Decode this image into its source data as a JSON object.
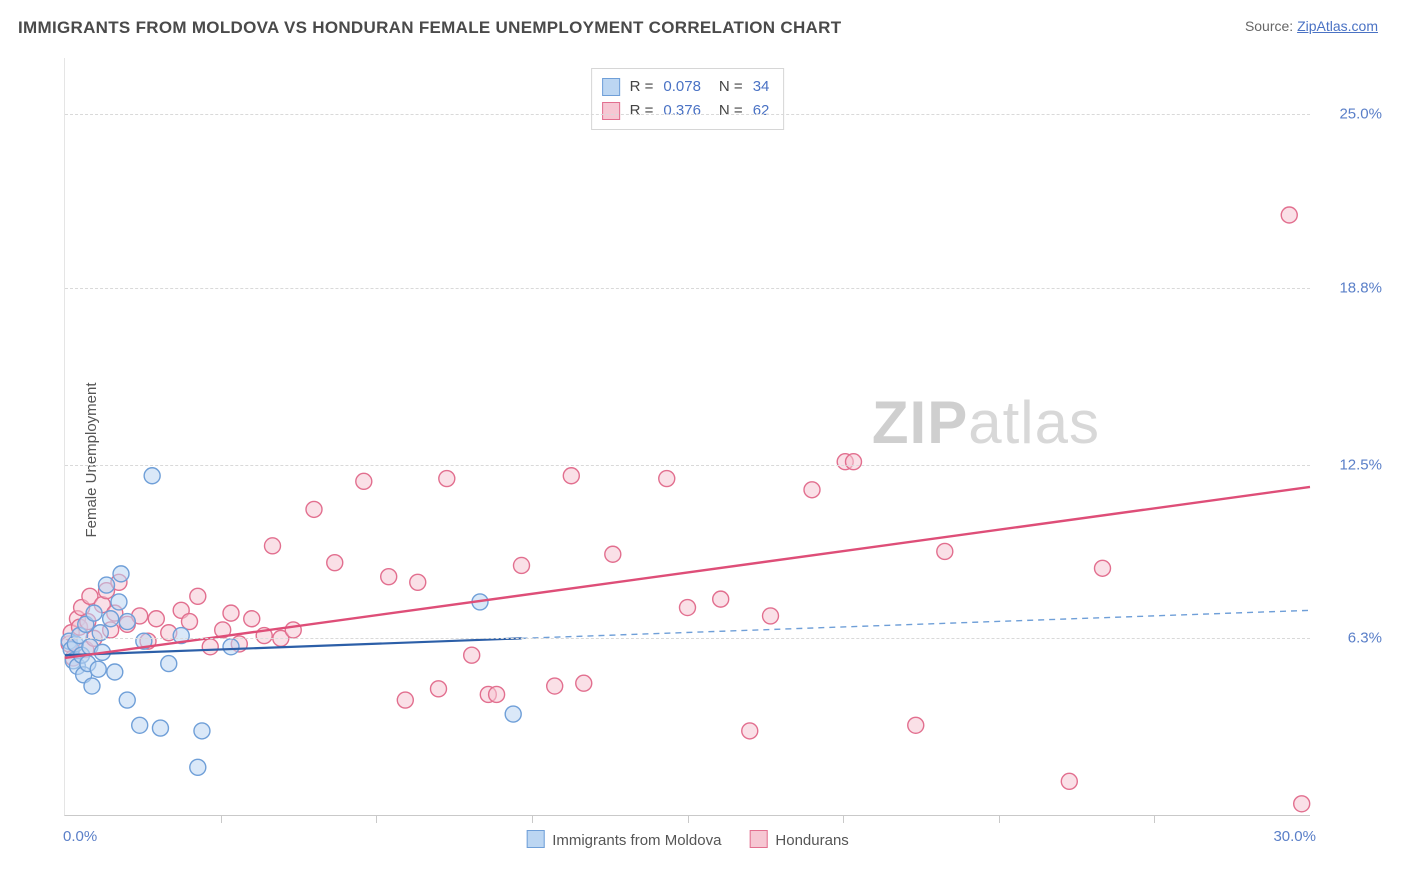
{
  "title": "IMMIGRANTS FROM MOLDOVA VS HONDURAN FEMALE UNEMPLOYMENT CORRELATION CHART",
  "source_label": "Source:",
  "source_name": "ZipAtlas.com",
  "y_axis_label": "Female Unemployment",
  "watermark_bold": "ZIP",
  "watermark_rest": "atlas",
  "chart": {
    "type": "scatter",
    "xlim": [
      0,
      30
    ],
    "ylim": [
      0,
      27
    ],
    "x_min_label": "0.0%",
    "x_max_label": "30.0%",
    "y_ticks": [
      6.3,
      12.5,
      18.8,
      25.0
    ],
    "y_tick_labels": [
      "6.3%",
      "12.5%",
      "18.8%",
      "25.0%"
    ],
    "x_ticks": [
      3.75,
      7.5,
      11.25,
      15,
      18.75,
      22.5,
      26.25
    ],
    "background_color": "#ffffff",
    "grid_color": "#d9d9d9",
    "axis_color": "#c9c9c9",
    "tick_label_color": "#5a7fc8",
    "marker_radius": 8,
    "marker_stroke_width": 1.4,
    "series": {
      "moldova": {
        "label": "Immigrants from Moldova",
        "fill_color": "#bcd6f2",
        "stroke_color": "#6f9fd8",
        "fill_opacity": 0.55,
        "R": "0.078",
        "N": "34",
        "trend": {
          "solid": {
            "x1": 0,
            "y1": 5.7,
            "x2": 11,
            "y2": 6.3,
            "color": "#2c5fa8",
            "width": 2.2
          },
          "dashed": {
            "x1": 11,
            "y1": 6.3,
            "x2": 30,
            "y2": 7.3,
            "color": "#6f9fd8",
            "width": 1.4,
            "dash": "6,5"
          }
        },
        "points": [
          [
            0.1,
            6.2
          ],
          [
            0.15,
            5.9
          ],
          [
            0.2,
            5.5
          ],
          [
            0.25,
            6.1
          ],
          [
            0.3,
            5.3
          ],
          [
            0.35,
            6.4
          ],
          [
            0.4,
            5.7
          ],
          [
            0.45,
            5.0
          ],
          [
            0.5,
            6.8
          ],
          [
            0.55,
            5.4
          ],
          [
            0.6,
            6.0
          ],
          [
            0.65,
            4.6
          ],
          [
            0.7,
            7.2
          ],
          [
            0.8,
            5.2
          ],
          [
            0.85,
            6.5
          ],
          [
            0.9,
            5.8
          ],
          [
            1.0,
            8.2
          ],
          [
            1.1,
            7.0
          ],
          [
            1.2,
            5.1
          ],
          [
            1.3,
            7.6
          ],
          [
            1.35,
            8.6
          ],
          [
            1.5,
            4.1
          ],
          [
            1.5,
            6.9
          ],
          [
            1.8,
            3.2
          ],
          [
            1.9,
            6.2
          ],
          [
            2.1,
            12.1
          ],
          [
            2.3,
            3.1
          ],
          [
            2.5,
            5.4
          ],
          [
            2.8,
            6.4
          ],
          [
            3.2,
            1.7
          ],
          [
            3.3,
            3.0
          ],
          [
            4.0,
            6.0
          ],
          [
            10.0,
            7.6
          ],
          [
            10.8,
            3.6
          ]
        ]
      },
      "hondurans": {
        "label": "Hondurans",
        "fill_color": "#f6c7d3",
        "stroke_color": "#e26f8f",
        "fill_opacity": 0.55,
        "R": "0.376",
        "N": "62",
        "trend": {
          "solid": {
            "x1": 0,
            "y1": 5.6,
            "x2": 30,
            "y2": 11.7,
            "color": "#de4e78",
            "width": 2.4
          }
        },
        "points": [
          [
            0.1,
            6.1
          ],
          [
            0.15,
            6.5
          ],
          [
            0.2,
            5.6
          ],
          [
            0.3,
            7.0
          ],
          [
            0.35,
            6.7
          ],
          [
            0.4,
            7.4
          ],
          [
            0.5,
            5.9
          ],
          [
            0.55,
            6.9
          ],
          [
            0.6,
            7.8
          ],
          [
            0.7,
            6.3
          ],
          [
            0.9,
            7.5
          ],
          [
            1.0,
            8.0
          ],
          [
            1.1,
            6.6
          ],
          [
            1.2,
            7.2
          ],
          [
            1.3,
            8.3
          ],
          [
            1.5,
            6.8
          ],
          [
            1.8,
            7.1
          ],
          [
            2.0,
            6.2
          ],
          [
            2.2,
            7.0
          ],
          [
            2.5,
            6.5
          ],
          [
            2.8,
            7.3
          ],
          [
            3.0,
            6.9
          ],
          [
            3.2,
            7.8
          ],
          [
            3.5,
            6.0
          ],
          [
            3.8,
            6.6
          ],
          [
            4.0,
            7.2
          ],
          [
            4.2,
            6.1
          ],
          [
            4.5,
            7.0
          ],
          [
            4.8,
            6.4
          ],
          [
            5.0,
            9.6
          ],
          [
            5.2,
            6.3
          ],
          [
            5.5,
            6.6
          ],
          [
            6.0,
            10.9
          ],
          [
            6.5,
            9.0
          ],
          [
            7.2,
            11.9
          ],
          [
            7.8,
            8.5
          ],
          [
            8.2,
            4.1
          ],
          [
            8.5,
            8.3
          ],
          [
            9.0,
            4.5
          ],
          [
            9.2,
            12.0
          ],
          [
            9.8,
            5.7
          ],
          [
            10.2,
            4.3
          ],
          [
            10.4,
            4.3
          ],
          [
            11.0,
            8.9
          ],
          [
            11.8,
            4.6
          ],
          [
            12.2,
            12.1
          ],
          [
            12.5,
            4.7
          ],
          [
            13.2,
            9.3
          ],
          [
            14.5,
            12.0
          ],
          [
            15.0,
            7.4
          ],
          [
            15.8,
            7.7
          ],
          [
            16.5,
            3.0
          ],
          [
            17.0,
            7.1
          ],
          [
            18.0,
            11.6
          ],
          [
            18.8,
            12.6
          ],
          [
            19.0,
            12.6
          ],
          [
            20.5,
            3.2
          ],
          [
            21.2,
            9.4
          ],
          [
            24.2,
            1.2
          ],
          [
            25.0,
            8.8
          ],
          [
            29.5,
            21.4
          ],
          [
            29.8,
            0.4
          ]
        ]
      }
    },
    "legend_stats_layout": [
      {
        "sw_fill": "#bcd6f2",
        "sw_stroke": "#6f9fd8",
        "r_key": "chart.series.moldova.R",
        "n_key": "chart.series.moldova.N"
      },
      {
        "sw_fill": "#f6c7d3",
        "sw_stroke": "#e26f8f",
        "r_key": "chart.series.hondurans.R",
        "n_key": "chart.series.hondurans.N"
      }
    ]
  }
}
